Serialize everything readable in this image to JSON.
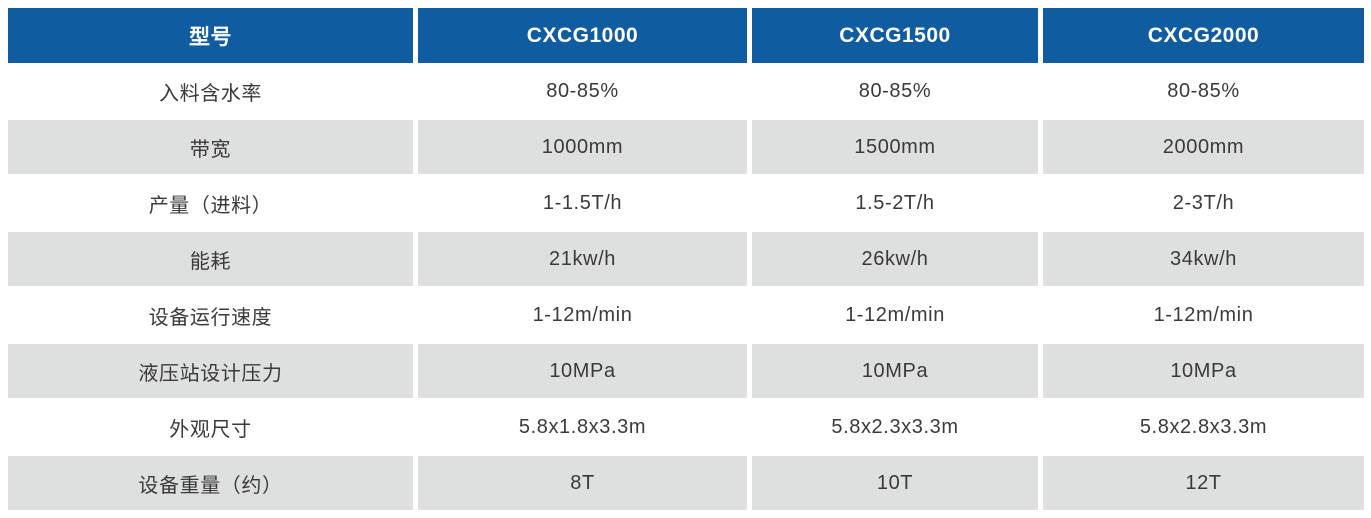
{
  "table": {
    "columns": [
      {
        "label": "型号"
      },
      {
        "label": "CXCG1000"
      },
      {
        "label": "CXCG1500"
      },
      {
        "label": "CXCG2000"
      }
    ],
    "rows": [
      {
        "label": "入料含水率",
        "values": [
          "80-85%",
          "80-85%",
          "80-85%"
        ]
      },
      {
        "label": "带宽",
        "values": [
          "1000mm",
          "1500mm",
          "2000mm"
        ]
      },
      {
        "label": "产量（进料）",
        "values": [
          "1-1.5T/h",
          "1.5-2T/h",
          "2-3T/h"
        ]
      },
      {
        "label": "能耗",
        "values": [
          "21kw/h",
          "26kw/h",
          "34kw/h"
        ]
      },
      {
        "label": "设备运行速度",
        "values": [
          "1-12m/min",
          "1-12m/min",
          "1-12m/min"
        ]
      },
      {
        "label": "液压站设计压力",
        "values": [
          "10MPa",
          "10MPa",
          "10MPa"
        ]
      },
      {
        "label": "外观尺寸",
        "values": [
          "5.8x1.8x3.3m",
          "5.8x2.3x3.3m",
          "5.8x2.8x3.3m"
        ]
      },
      {
        "label": "设备重量（约）",
        "values": [
          "8T",
          "10T",
          "12T"
        ]
      }
    ],
    "colors": {
      "header_bg": "#105CA0",
      "header_text": "#FFFFFF",
      "row_bg": "#FFFFFF",
      "row_alt_bg": "#DEDFDF",
      "body_text": "#3A3A3A"
    }
  }
}
